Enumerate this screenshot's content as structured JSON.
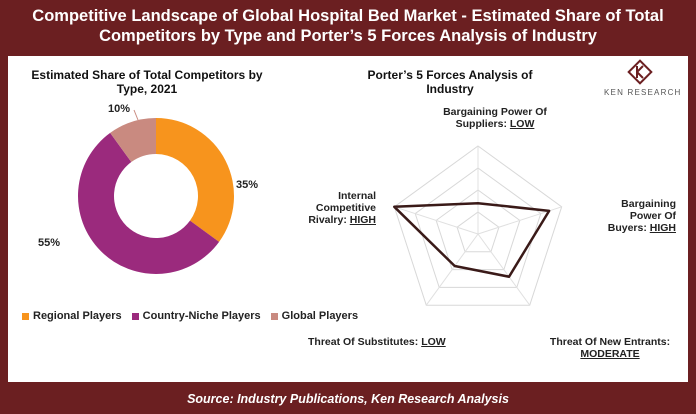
{
  "header": {
    "title_line1": "Competitive Landscape of Global Hospital Bed Market - Estimated Share of Total",
    "title_line2": "Competitors by Type and Porter’s 5 Forces Analysis of Industry"
  },
  "footer": {
    "source": "Source: Industry Publications, Ken Research Analysis"
  },
  "logo": {
    "text": "KEN RESEARCH"
  },
  "colors": {
    "frame": "#6b1f21",
    "regional": "#f7941d",
    "niche": "#9b2a7d",
    "global": "#c98a80",
    "radar_line": "#3a1a18"
  },
  "chart_data": [
    {
      "type": "pie",
      "title_line1": "Estimated Share of Total Competitors by",
      "title_line2": "Type, 2021",
      "categories": [
        "Regional Players",
        "Country-Niche Players",
        "Global Players"
      ],
      "values": [
        35,
        55,
        10
      ],
      "labels": [
        "35%",
        "55%",
        "10%"
      ],
      "legend": "bottom"
    },
    {
      "type": "radar",
      "title_line1": "Porter’s 5 Forces Analysis of",
      "title_line2": "Industry",
      "axes": [
        {
          "name": "Bargaining Power Of Suppliers",
          "rating": "LOW",
          "value": 0.35
        },
        {
          "name": "Bargaining Power Of Buyers",
          "rating": "HIGH",
          "value": 0.85
        },
        {
          "name": "Threat Of New Entrants",
          "rating": "MODERATE",
          "value": 0.6
        },
        {
          "name": "Threat Of Substitutes",
          "rating": "LOW",
          "value": 0.45
        },
        {
          "name": "Internal Competitive Rivalry",
          "rating": "HIGH",
          "value": 1.0
        }
      ],
      "rings": 4
    }
  ],
  "axis_labels": {
    "suppliers_l1": "Bargaining Power Of",
    "suppliers_l2": "Suppliers: ",
    "suppliers_rating": "LOW",
    "buyers_l1": "Bargaining",
    "buyers_l2": "Power Of",
    "buyers_l3": "Buyers: ",
    "buyers_rating": "HIGH",
    "entrants_l1": "Threat Of New Entrants:",
    "entrants_rating": "MODERATE",
    "substitutes_l1": "Threat Of Substitutes: ",
    "substitutes_rating": "LOW",
    "rivalry_l1": "Internal",
    "rivalry_l2": "Competitive",
    "rivalry_l3": "Rivalry: ",
    "rivalry_rating": "HIGH"
  }
}
